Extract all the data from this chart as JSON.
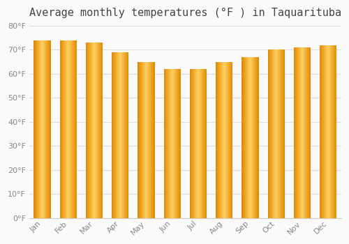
{
  "title": "Average monthly temperatures (°F ) in Taquarituba",
  "months": [
    "Jan",
    "Feb",
    "Mar",
    "Apr",
    "May",
    "Jun",
    "Jul",
    "Aug",
    "Sep",
    "Oct",
    "Nov",
    "Dec"
  ],
  "values": [
    74,
    74,
    73,
    69,
    65,
    62,
    62,
    65,
    67,
    70,
    71,
    72
  ],
  "ylim": [
    0,
    80
  ],
  "yticks": [
    0,
    10,
    20,
    30,
    40,
    50,
    60,
    70,
    80
  ],
  "bar_color_edge": "#E08800",
  "bar_color_light": "#FFD060",
  "background_color": "#FAFAFA",
  "plot_bg_color": "#FAFAFA",
  "grid_color": "#DDDDDD",
  "title_fontsize": 11,
  "tick_fontsize": 8,
  "title_color": "#444444",
  "tick_color": "#888888"
}
